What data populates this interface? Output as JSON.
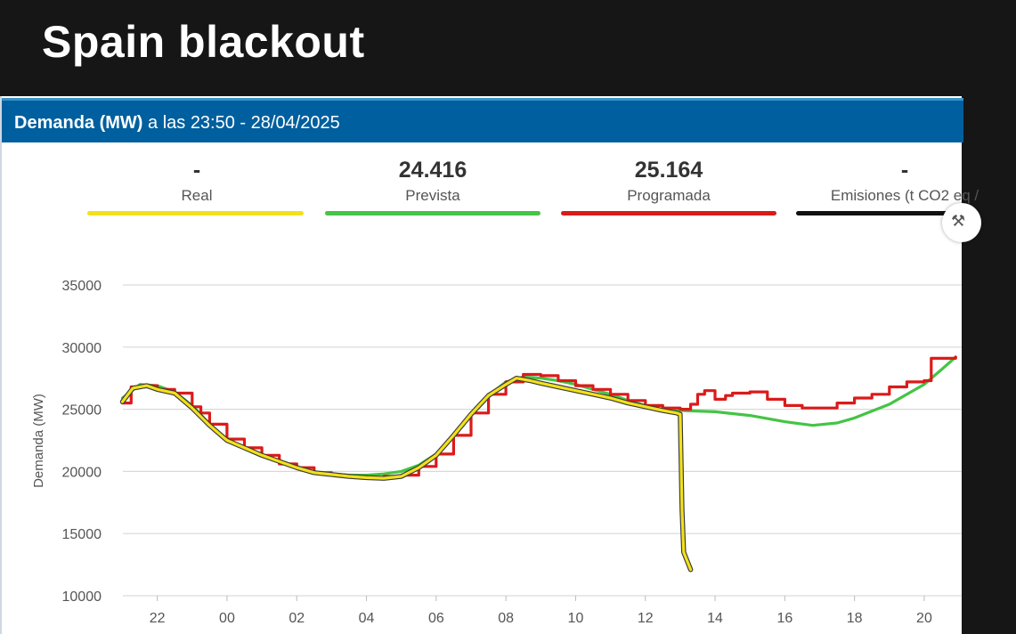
{
  "video_title": "Spain blackout",
  "header": {
    "bold": "Demanda (MW)",
    "rest": " a las 23:50 - 28/04/2025"
  },
  "metrics": [
    {
      "value": "-",
      "label": "Real",
      "color": "#f2e11a"
    },
    {
      "value": "24.416",
      "label": "Prevista",
      "color": "#45c445"
    },
    {
      "value": "25.164",
      "label": "Programada",
      "color": "#dc1a1a"
    },
    {
      "value": "-",
      "label": "Emisiones (t CO2 eq /",
      "color": "#111111"
    }
  ],
  "settings_icon": "tools-icon",
  "chart_data": {
    "type": "line",
    "title": "",
    "ylabel": "Demanda (MW)",
    "xlabel": "",
    "ylim": [
      10000,
      35000
    ],
    "yticks": [
      10000,
      15000,
      20000,
      25000,
      30000,
      35000
    ],
    "xtick_labels": [
      "22",
      "00",
      "02",
      "04",
      "06",
      "08",
      "10",
      "12",
      "14",
      "16",
      "18",
      "20"
    ],
    "xtick_hours": [
      22,
      24,
      26,
      28,
      30,
      32,
      34,
      36,
      38,
      40,
      42,
      44
    ],
    "xlim_hours": [
      21,
      44.9
    ],
    "x_unit_note": "hours since 00:00 of 27/04 display; 24 = 00 of 28/04",
    "grid": true,
    "series": [
      {
        "name": "Real",
        "color": "#f2e11a",
        "points": [
          [
            21.0,
            25600
          ],
          [
            21.3,
            26700
          ],
          [
            21.7,
            26900
          ],
          [
            22.0,
            26600
          ],
          [
            22.5,
            26300
          ],
          [
            23.0,
            25100
          ],
          [
            23.5,
            23700
          ],
          [
            24.0,
            22500
          ],
          [
            24.5,
            21900
          ],
          [
            25.0,
            21300
          ],
          [
            25.5,
            20800
          ],
          [
            26.0,
            20300
          ],
          [
            26.5,
            19900
          ],
          [
            27.0,
            19750
          ],
          [
            27.5,
            19600
          ],
          [
            28.0,
            19500
          ],
          [
            28.5,
            19450
          ],
          [
            29.0,
            19600
          ],
          [
            29.5,
            20300
          ],
          [
            30.0,
            21300
          ],
          [
            30.5,
            22900
          ],
          [
            31.0,
            24600
          ],
          [
            31.5,
            26100
          ],
          [
            32.0,
            27000
          ],
          [
            32.3,
            27500
          ],
          [
            32.7,
            27300
          ],
          [
            33.0,
            27100
          ],
          [
            33.5,
            26800
          ],
          [
            34.0,
            26500
          ],
          [
            34.5,
            26200
          ],
          [
            35.0,
            25900
          ],
          [
            35.5,
            25500
          ],
          [
            36.0,
            25200
          ],
          [
            36.5,
            24900
          ],
          [
            36.9,
            24700
          ],
          [
            37.0,
            24600
          ],
          [
            37.05,
            17000
          ],
          [
            37.1,
            13500
          ],
          [
            37.3,
            12100
          ]
        ]
      },
      {
        "name": "Prevista",
        "color": "#45c445",
        "points": [
          [
            21.0,
            25900
          ],
          [
            21.5,
            27000
          ],
          [
            22.0,
            26900
          ],
          [
            22.5,
            26400
          ],
          [
            23.0,
            25300
          ],
          [
            23.5,
            23800
          ],
          [
            24.0,
            22600
          ],
          [
            24.5,
            21900
          ],
          [
            25.0,
            21300
          ],
          [
            25.5,
            20800
          ],
          [
            26.0,
            20300
          ],
          [
            26.5,
            19950
          ],
          [
            27.0,
            19800
          ],
          [
            27.5,
            19700
          ],
          [
            28.0,
            19700
          ],
          [
            28.5,
            19800
          ],
          [
            29.0,
            20000
          ],
          [
            29.5,
            20500
          ],
          [
            30.0,
            21400
          ],
          [
            30.5,
            22900
          ],
          [
            31.0,
            24600
          ],
          [
            31.5,
            26100
          ],
          [
            32.0,
            27200
          ],
          [
            32.5,
            27600
          ],
          [
            33.0,
            27500
          ],
          [
            33.5,
            27300
          ],
          [
            34.0,
            27000
          ],
          [
            34.5,
            26600
          ],
          [
            35.0,
            26200
          ],
          [
            35.5,
            25700
          ],
          [
            36.0,
            25300
          ],
          [
            36.5,
            25000
          ],
          [
            37.0,
            24900
          ],
          [
            38.0,
            24800
          ],
          [
            39.0,
            24500
          ],
          [
            40.0,
            24000
          ],
          [
            40.8,
            23700
          ],
          [
            41.5,
            23900
          ],
          [
            42.0,
            24300
          ],
          [
            43.0,
            25400
          ],
          [
            44.0,
            27000
          ],
          [
            44.5,
            28200
          ],
          [
            44.9,
            29200
          ]
        ]
      },
      {
        "name": "Programada",
        "color": "#dc1a1a",
        "steps": [
          [
            21.0,
            25500
          ],
          [
            21.25,
            26800
          ],
          [
            21.75,
            26900
          ],
          [
            22.0,
            26600
          ],
          [
            22.5,
            26300
          ],
          [
            23.0,
            25200
          ],
          [
            23.25,
            24700
          ],
          [
            23.5,
            23800
          ],
          [
            24.0,
            22600
          ],
          [
            24.5,
            21900
          ],
          [
            25.0,
            21300
          ],
          [
            25.5,
            20600
          ],
          [
            26.0,
            20300
          ],
          [
            26.5,
            19900
          ],
          [
            27.0,
            19700
          ],
          [
            27.5,
            19600
          ],
          [
            28.0,
            19500
          ],
          [
            28.5,
            19600
          ],
          [
            29.0,
            19700
          ],
          [
            29.5,
            20400
          ],
          [
            30.0,
            21400
          ],
          [
            30.5,
            22900
          ],
          [
            31.0,
            24700
          ],
          [
            31.5,
            26200
          ],
          [
            32.0,
            27200
          ],
          [
            32.5,
            27800
          ],
          [
            33.0,
            27700
          ],
          [
            33.5,
            27300
          ],
          [
            34.0,
            26900
          ],
          [
            34.5,
            26600
          ],
          [
            35.0,
            26200
          ],
          [
            35.5,
            25700
          ],
          [
            36.0,
            25300
          ],
          [
            36.5,
            25100
          ],
          [
            37.0,
            25000
          ],
          [
            37.3,
            25400
          ],
          [
            37.5,
            26200
          ],
          [
            37.7,
            26500
          ],
          [
            38.0,
            25800
          ],
          [
            38.3,
            26100
          ],
          [
            38.5,
            26300
          ],
          [
            39.0,
            26400
          ],
          [
            39.5,
            25800
          ],
          [
            40.0,
            25300
          ],
          [
            40.5,
            25100
          ],
          [
            41.0,
            25100
          ],
          [
            41.5,
            25500
          ],
          [
            42.0,
            25900
          ],
          [
            42.5,
            26200
          ],
          [
            43.0,
            26800
          ],
          [
            43.5,
            27200
          ],
          [
            44.0,
            27300
          ],
          [
            44.2,
            29100
          ],
          [
            44.9,
            29200
          ]
        ]
      }
    ]
  }
}
